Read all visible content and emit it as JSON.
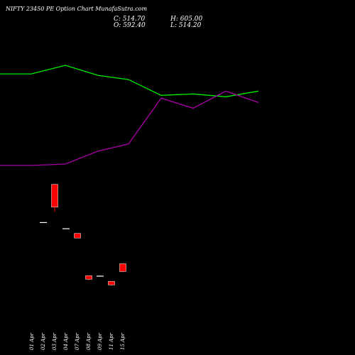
{
  "header": {
    "title": "NIFTY 23450  PE Option  Chart  MunafaSutra.com",
    "close": "C: 514.70",
    "high": "H: 605.00",
    "open": "O: 592.40",
    "low": "L: 514.20"
  },
  "colors": {
    "background": "#000000",
    "green_line": "#00ee00",
    "magenta_line": "#aa00aa",
    "candle_red": "#ff0000",
    "candle_white": "#ffffff",
    "label": "#ffffff"
  },
  "chart_data": {
    "type": "candlestick",
    "categories": [
      "01 Apr",
      "02 Apr",
      "03 Apr",
      "04 Apr",
      "07 Apr",
      "08 Apr",
      "09 Apr",
      "11 Apr",
      "15 Apr"
    ],
    "line_series": [
      {
        "name": "",
        "color": "green",
        "values": [
          88,
          88,
          91,
          87.5,
          86,
          80.5,
          81,
          80,
          82
        ]
      },
      {
        "name": "",
        "color": "magenta",
        "values": [
          56,
          56,
          56.5,
          61,
          63.5,
          79.5,
          76,
          82,
          78
        ]
      }
    ],
    "candles": [
      {
        "date": "02 Apr",
        "open": 240,
        "close": 240,
        "high": 240,
        "low": 240,
        "color": "white"
      },
      {
        "date": "03 Apr",
        "open": 314,
        "close": 270,
        "high": 315,
        "low": 261,
        "color": "red"
      },
      {
        "date": "04 Apr",
        "open": 228,
        "close": 228,
        "high": 228,
        "low": 228,
        "color": "white"
      },
      {
        "date": "07 Apr",
        "open": 219,
        "close": 210,
        "high": 219,
        "low": 210,
        "color": "red"
      },
      {
        "date": "08 Apr",
        "open": 137,
        "close": 130,
        "high": 137,
        "low": 128,
        "color": "red"
      },
      {
        "date": "09 Apr",
        "open": 136,
        "close": 136,
        "high": 137,
        "low": 135,
        "color": "white"
      },
      {
        "date": "11 Apr",
        "open": 126,
        "close": 119,
        "high": 126,
        "low": 118,
        "color": "red"
      },
      {
        "date": "15 Apr",
        "open": 145,
        "close": 160,
        "high": 161,
        "low": 144,
        "color": "red"
      }
    ]
  }
}
